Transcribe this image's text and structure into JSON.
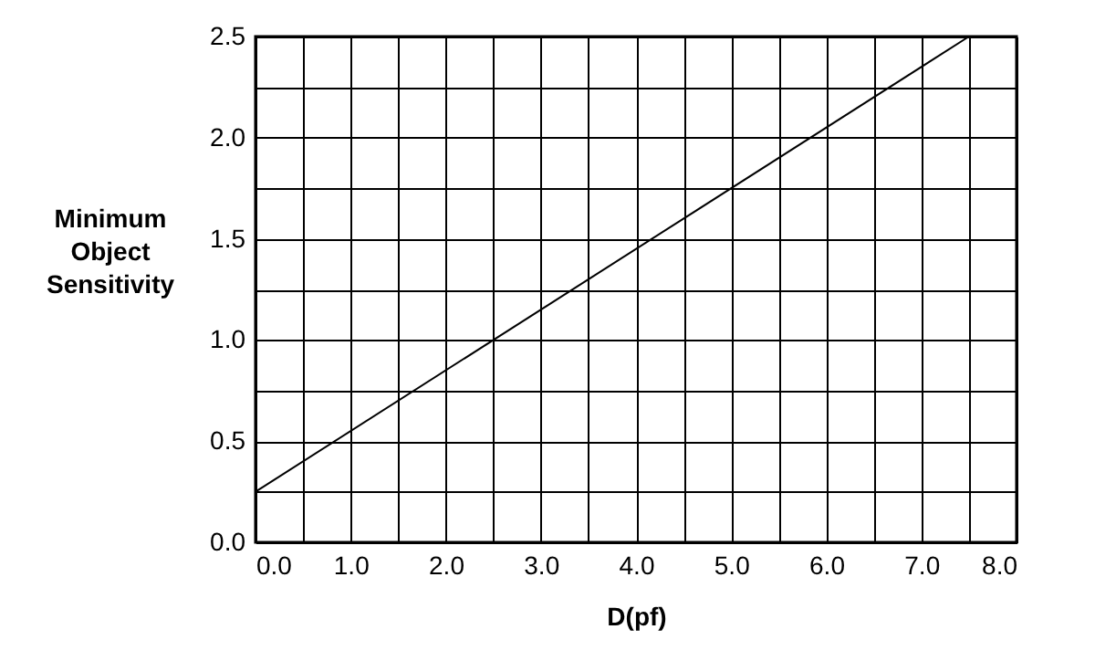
{
  "chart_data": {
    "type": "line",
    "xlabel": "D(pf)",
    "ylabel": "Minimum Object Sensitivity",
    "x": [
      0,
      7.5
    ],
    "series": [
      {
        "color": "#000000",
        "values": [
          0.25,
          2.5
        ]
      }
    ],
    "xlim": [
      0,
      8
    ],
    "ylim": [
      0,
      2.5
    ],
    "xticks": [
      {
        "value": 0,
        "label": "0.0"
      },
      {
        "value": 0.5,
        "label": null
      },
      {
        "value": 1,
        "label": "1.0"
      },
      {
        "value": 1.5,
        "label": null
      },
      {
        "value": 2,
        "label": "2.0"
      },
      {
        "value": 2.5,
        "label": null
      },
      {
        "value": 3,
        "label": "3.0"
      },
      {
        "value": 3.5,
        "label": null
      },
      {
        "value": 4,
        "label": "4.0"
      },
      {
        "value": 4.5,
        "label": null
      },
      {
        "value": 5,
        "label": "5.0"
      },
      {
        "value": 5.5,
        "label": null
      },
      {
        "value": 6,
        "label": "6.0"
      },
      {
        "value": 6.5,
        "label": null
      },
      {
        "value": 7,
        "label": "7.0"
      },
      {
        "value": 7.5,
        "label": null
      },
      {
        "value": 8,
        "label": "8.0"
      }
    ],
    "yticks": [
      {
        "value": 0,
        "label": "0.0"
      },
      {
        "value": 0.25,
        "label": null
      },
      {
        "value": 0.5,
        "label": "0.5"
      },
      {
        "value": 0.75,
        "label": null
      },
      {
        "value": 1,
        "label": "1.0"
      },
      {
        "value": 1.25,
        "label": null
      },
      {
        "value": 1.5,
        "label": "1.5"
      },
      {
        "value": 1.75,
        "label": null
      },
      {
        "value": 2,
        "label": "2.0"
      },
      {
        "value": 2.25,
        "label": null
      },
      {
        "value": 2.5,
        "label": "2.5"
      }
    ],
    "grid": true,
    "marker": "none",
    "line_style": "solid"
  }
}
